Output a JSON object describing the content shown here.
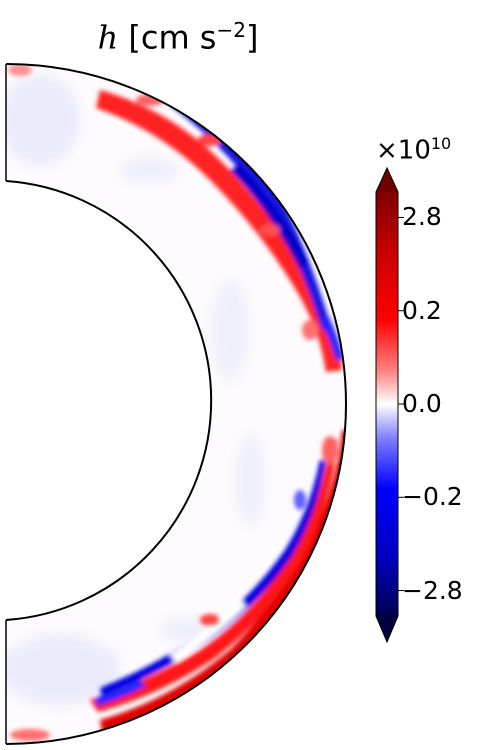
{
  "chart_data": {
    "type": "heatmap",
    "geometry": "half-annulus (meridional slice of a spherical shell)",
    "title_var": "h",
    "title_units": "[cm s",
    "title_exp": "−2",
    "title_close": "]",
    "colormap": "seismic",
    "colorbar": {
      "multiplier_base": "×10",
      "multiplier_exp": "10",
      "tick_labels": [
        "2.8",
        "0.2",
        "0.0",
        "−0.2",
        "−2.8"
      ],
      "tick_values": [
        2.8,
        0.2,
        0.0,
        -0.2,
        -2.8
      ],
      "extend": "both",
      "scale": "symmetric-log"
    },
    "field_description": "positive (red) and negative (blue) values concentrated in a thin layer near the outer boundary, near-zero in the interior"
  }
}
